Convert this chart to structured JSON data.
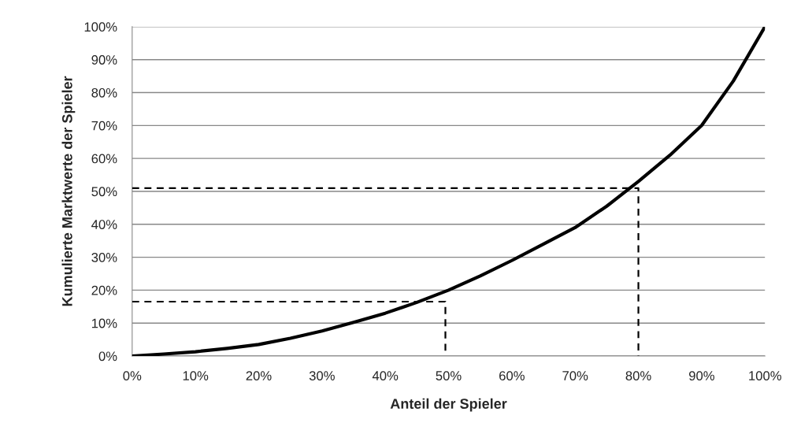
{
  "chart_data": {
    "type": "line",
    "xlabel": "Anteil der Spieler",
    "ylabel": "Kumulierte Marktwerte der Spieler",
    "xlim": [
      0,
      100
    ],
    "ylim": [
      0,
      100
    ],
    "xticks": [
      {
        "value": 0,
        "label": "0%"
      },
      {
        "value": 10,
        "label": "10%"
      },
      {
        "value": 20,
        "label": "20%"
      },
      {
        "value": 30,
        "label": "30%"
      },
      {
        "value": 40,
        "label": "40%"
      },
      {
        "value": 50,
        "label": "50%"
      },
      {
        "value": 60,
        "label": "60%"
      },
      {
        "value": 70,
        "label": "70%"
      },
      {
        "value": 80,
        "label": "80%"
      },
      {
        "value": 90,
        "label": "90%"
      },
      {
        "value": 100,
        "label": "100%"
      }
    ],
    "yticks": [
      {
        "value": 0,
        "label": "0%"
      },
      {
        "value": 10,
        "label": "10%"
      },
      {
        "value": 20,
        "label": "20%"
      },
      {
        "value": 30,
        "label": "30%"
      },
      {
        "value": 40,
        "label": "40%"
      },
      {
        "value": 50,
        "label": "50%"
      },
      {
        "value": 60,
        "label": "60%"
      },
      {
        "value": 70,
        "label": "70%"
      },
      {
        "value": 80,
        "label": "80%"
      },
      {
        "value": 90,
        "label": "90%"
      },
      {
        "value": 100,
        "label": "100%"
      }
    ],
    "grid": "y",
    "series": [
      {
        "color": "#000000",
        "line_style": "solid",
        "x": [
          0,
          5,
          10,
          15,
          20,
          25,
          30,
          35,
          40,
          45,
          50,
          55,
          60,
          65,
          70,
          75,
          80,
          85,
          90,
          95,
          100
        ],
        "values": [
          0,
          0.6,
          1.3,
          2.3,
          3.5,
          5.4,
          7.6,
          10.2,
          13,
          16.3,
          20,
          24.3,
          29,
          34,
          39,
          45.5,
          53,
          61,
          70,
          83.5,
          100
        ]
      },
      {
        "color": "#000000",
        "line_style": "dashed",
        "x": [
          0,
          80,
          80
        ],
        "values": [
          51,
          51,
          0
        ]
      },
      {
        "color": "#000000",
        "line_style": "dashed",
        "x": [
          0,
          49.5,
          49.5
        ],
        "values": [
          16.5,
          16.5,
          0
        ]
      }
    ]
  }
}
